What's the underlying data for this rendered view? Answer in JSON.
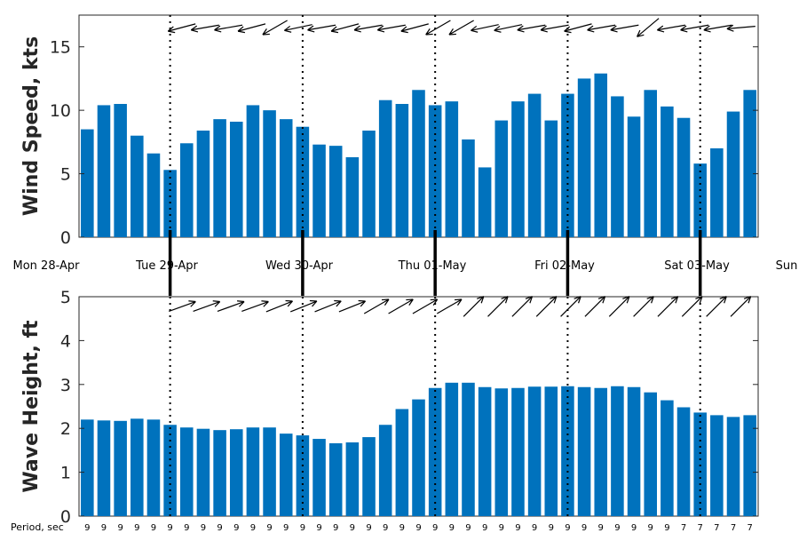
{
  "chart_data": [
    {
      "type": "bar",
      "panel": "wind",
      "ylabel": "Wind Speed, kts",
      "ylim": [
        0,
        17.5
      ],
      "yticks": [
        0,
        5,
        10,
        15
      ],
      "values": [
        8.5,
        10.4,
        10.5,
        8.0,
        6.6,
        5.3,
        7.4,
        8.4,
        9.3,
        9.1,
        10.4,
        10.0,
        9.3,
        8.7,
        7.3,
        7.2,
        6.3,
        8.4,
        10.8,
        10.5,
        11.6,
        10.4,
        10.7,
        7.7,
        5.5,
        9.2,
        10.7,
        11.3,
        9.2,
        11.3,
        12.5,
        12.9,
        11.1,
        9.5,
        11.6,
        10.3,
        9.4,
        5.8,
        7.0,
        9.9,
        11.6
      ],
      "direction_arrows_deg": [
        255,
        260,
        260,
        255,
        240,
        258,
        260,
        255,
        260,
        260,
        255,
        240,
        240,
        258,
        258,
        260,
        260,
        255,
        260,
        260,
        230,
        260,
        260,
        260,
        265
      ]
    },
    {
      "type": "bar",
      "panel": "waves",
      "ylabel": "Wave Height, ft",
      "ylim": [
        0,
        5
      ],
      "yticks": [
        0,
        1,
        2,
        3,
        4,
        5
      ],
      "values": [
        2.2,
        2.18,
        2.17,
        2.22,
        2.2,
        2.08,
        2.02,
        1.99,
        1.96,
        1.98,
        2.02,
        2.02,
        1.88,
        1.84,
        1.76,
        1.66,
        1.68,
        1.8,
        2.08,
        2.44,
        2.66,
        2.92,
        3.04,
        3.04,
        2.94,
        2.91,
        2.92,
        2.95,
        2.95,
        2.96,
        2.94,
        2.92,
        2.96,
        2.94,
        2.82,
        2.64,
        2.48,
        2.36,
        2.3,
        2.26,
        2.3
      ],
      "direction_arrows_deg": [
        70,
        70,
        70,
        70,
        68,
        68,
        68,
        68,
        60,
        60,
        60,
        60,
        45,
        45,
        45,
        45,
        45,
        45,
        45,
        45,
        45,
        45,
        45,
        45
      ]
    }
  ],
  "days": [
    "Mon 28-Apr",
    "Tue 29-Apr",
    "Wed 30-Apr",
    "Thu 01-May",
    "Fri 02-May",
    "Sat 03-May",
    "Sun"
  ],
  "period": {
    "label": "Period, sec",
    "values": [
      9,
      9,
      9,
      9,
      9,
      9,
      9,
      9,
      9,
      9,
      9,
      9,
      9,
      9,
      9,
      9,
      9,
      9,
      9,
      9,
      9,
      9,
      9,
      9,
      9,
      9,
      9,
      9,
      9,
      9,
      9,
      9,
      9,
      9,
      9,
      9,
      7,
      7,
      7,
      7,
      7
    ]
  },
  "colors": {
    "bar": "#0072BD",
    "axis": "#262626",
    "arrow": "#000000"
  }
}
